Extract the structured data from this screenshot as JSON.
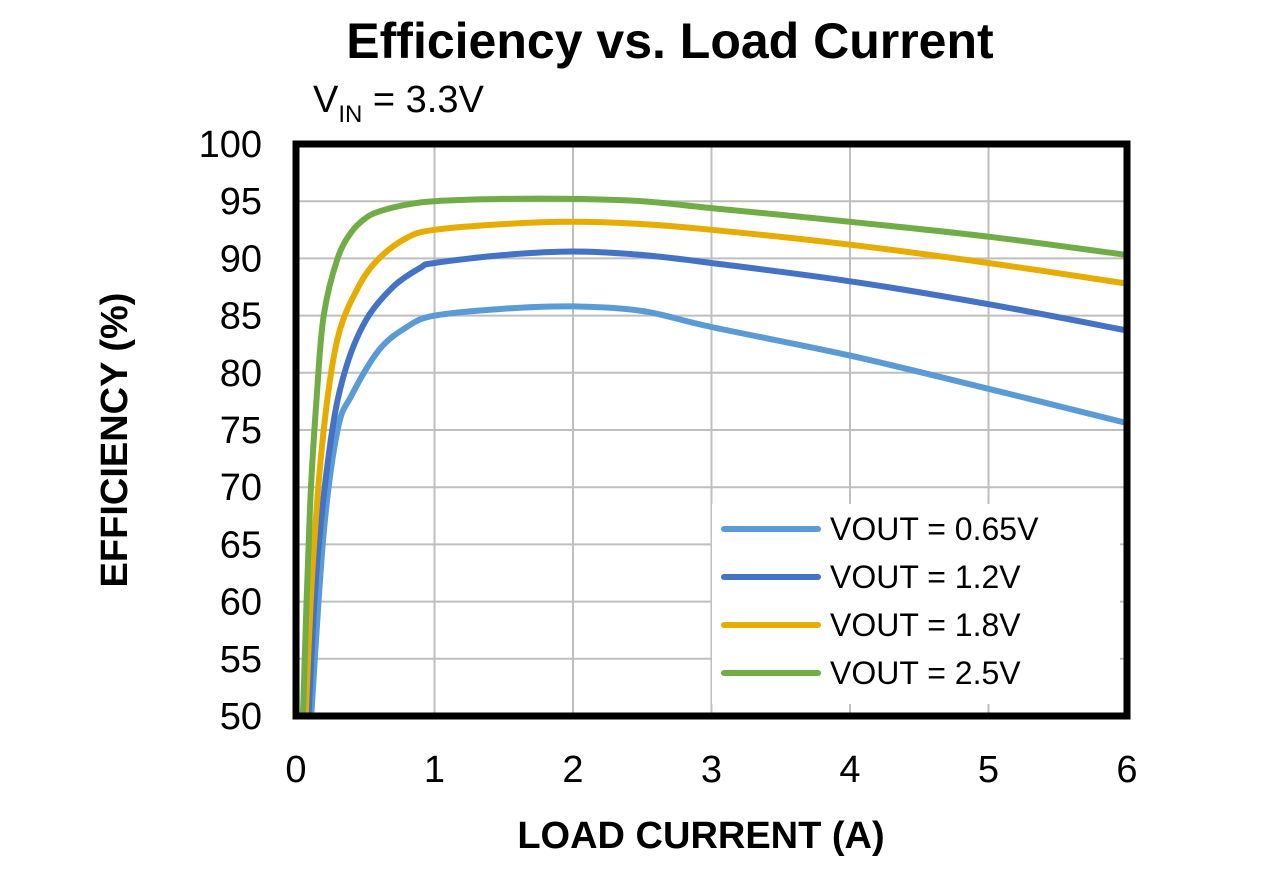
{
  "chart_data": {
    "type": "line",
    "title": "Efficiency vs. Load Current",
    "subtitle": {
      "main": "V",
      "sub": "IN",
      "rest": " = 3.3V"
    },
    "xlabel": "LOAD CURRENT (A)",
    "ylabel": "EFFICIENCY (%)",
    "xlim": [
      0,
      6
    ],
    "ylim": [
      50,
      100
    ],
    "xticks": [
      0,
      1,
      2,
      3,
      4,
      5,
      6
    ],
    "yticks": [
      50,
      55,
      60,
      65,
      70,
      75,
      80,
      85,
      90,
      95,
      100
    ],
    "grid": true,
    "legend_position": "bottom-right",
    "series": [
      {
        "name": "VOUT = 0.65V",
        "color": "#5b9bd5",
        "x": [
          0.11,
          0.2,
          0.3,
          0.4,
          0.6,
          0.8,
          1.0,
          1.5,
          2.0,
          2.5,
          3.0,
          4.0,
          5.0,
          6.0
        ],
        "y": [
          50,
          66,
          75,
          78,
          82,
          84,
          85,
          85.6,
          85.8,
          85.4,
          84,
          81.5,
          78.6,
          75.6
        ]
      },
      {
        "name": "VOUT = 1.2V",
        "color": "#4472c4",
        "x": [
          0.09,
          0.15,
          0.25,
          0.35,
          0.5,
          0.7,
          0.9,
          1.0,
          1.5,
          2.0,
          2.5,
          3.0,
          4.0,
          5.0,
          6.0
        ],
        "y": [
          50,
          63,
          74,
          80,
          84.5,
          87.5,
          89.2,
          89.6,
          90.3,
          90.6,
          90.3,
          89.6,
          88,
          86,
          83.7
        ]
      },
      {
        "name": "VOUT = 1.8V",
        "color": "#e6ac00",
        "x": [
          0.07,
          0.12,
          0.2,
          0.3,
          0.45,
          0.6,
          0.8,
          1.0,
          1.5,
          2.0,
          2.5,
          3.0,
          4.0,
          5.0,
          6.0
        ],
        "y": [
          50,
          63,
          75,
          83,
          87.5,
          90,
          91.8,
          92.5,
          93,
          93.2,
          93,
          92.5,
          91.2,
          89.6,
          87.8
        ]
      },
      {
        "name": "VOUT = 2.5V",
        "color": "#70ad47",
        "x": [
          0.05,
          0.1,
          0.15,
          0.2,
          0.3,
          0.4,
          0.5,
          0.6,
          0.8,
          1.0,
          1.5,
          2.0,
          2.5,
          3.0,
          4.0,
          5.0,
          6.0
        ],
        "y": [
          50,
          68,
          78,
          85,
          90,
          92.3,
          93.5,
          94.1,
          94.7,
          95,
          95.2,
          95.2,
          95,
          94.4,
          93.2,
          91.9,
          90.3
        ]
      }
    ]
  }
}
